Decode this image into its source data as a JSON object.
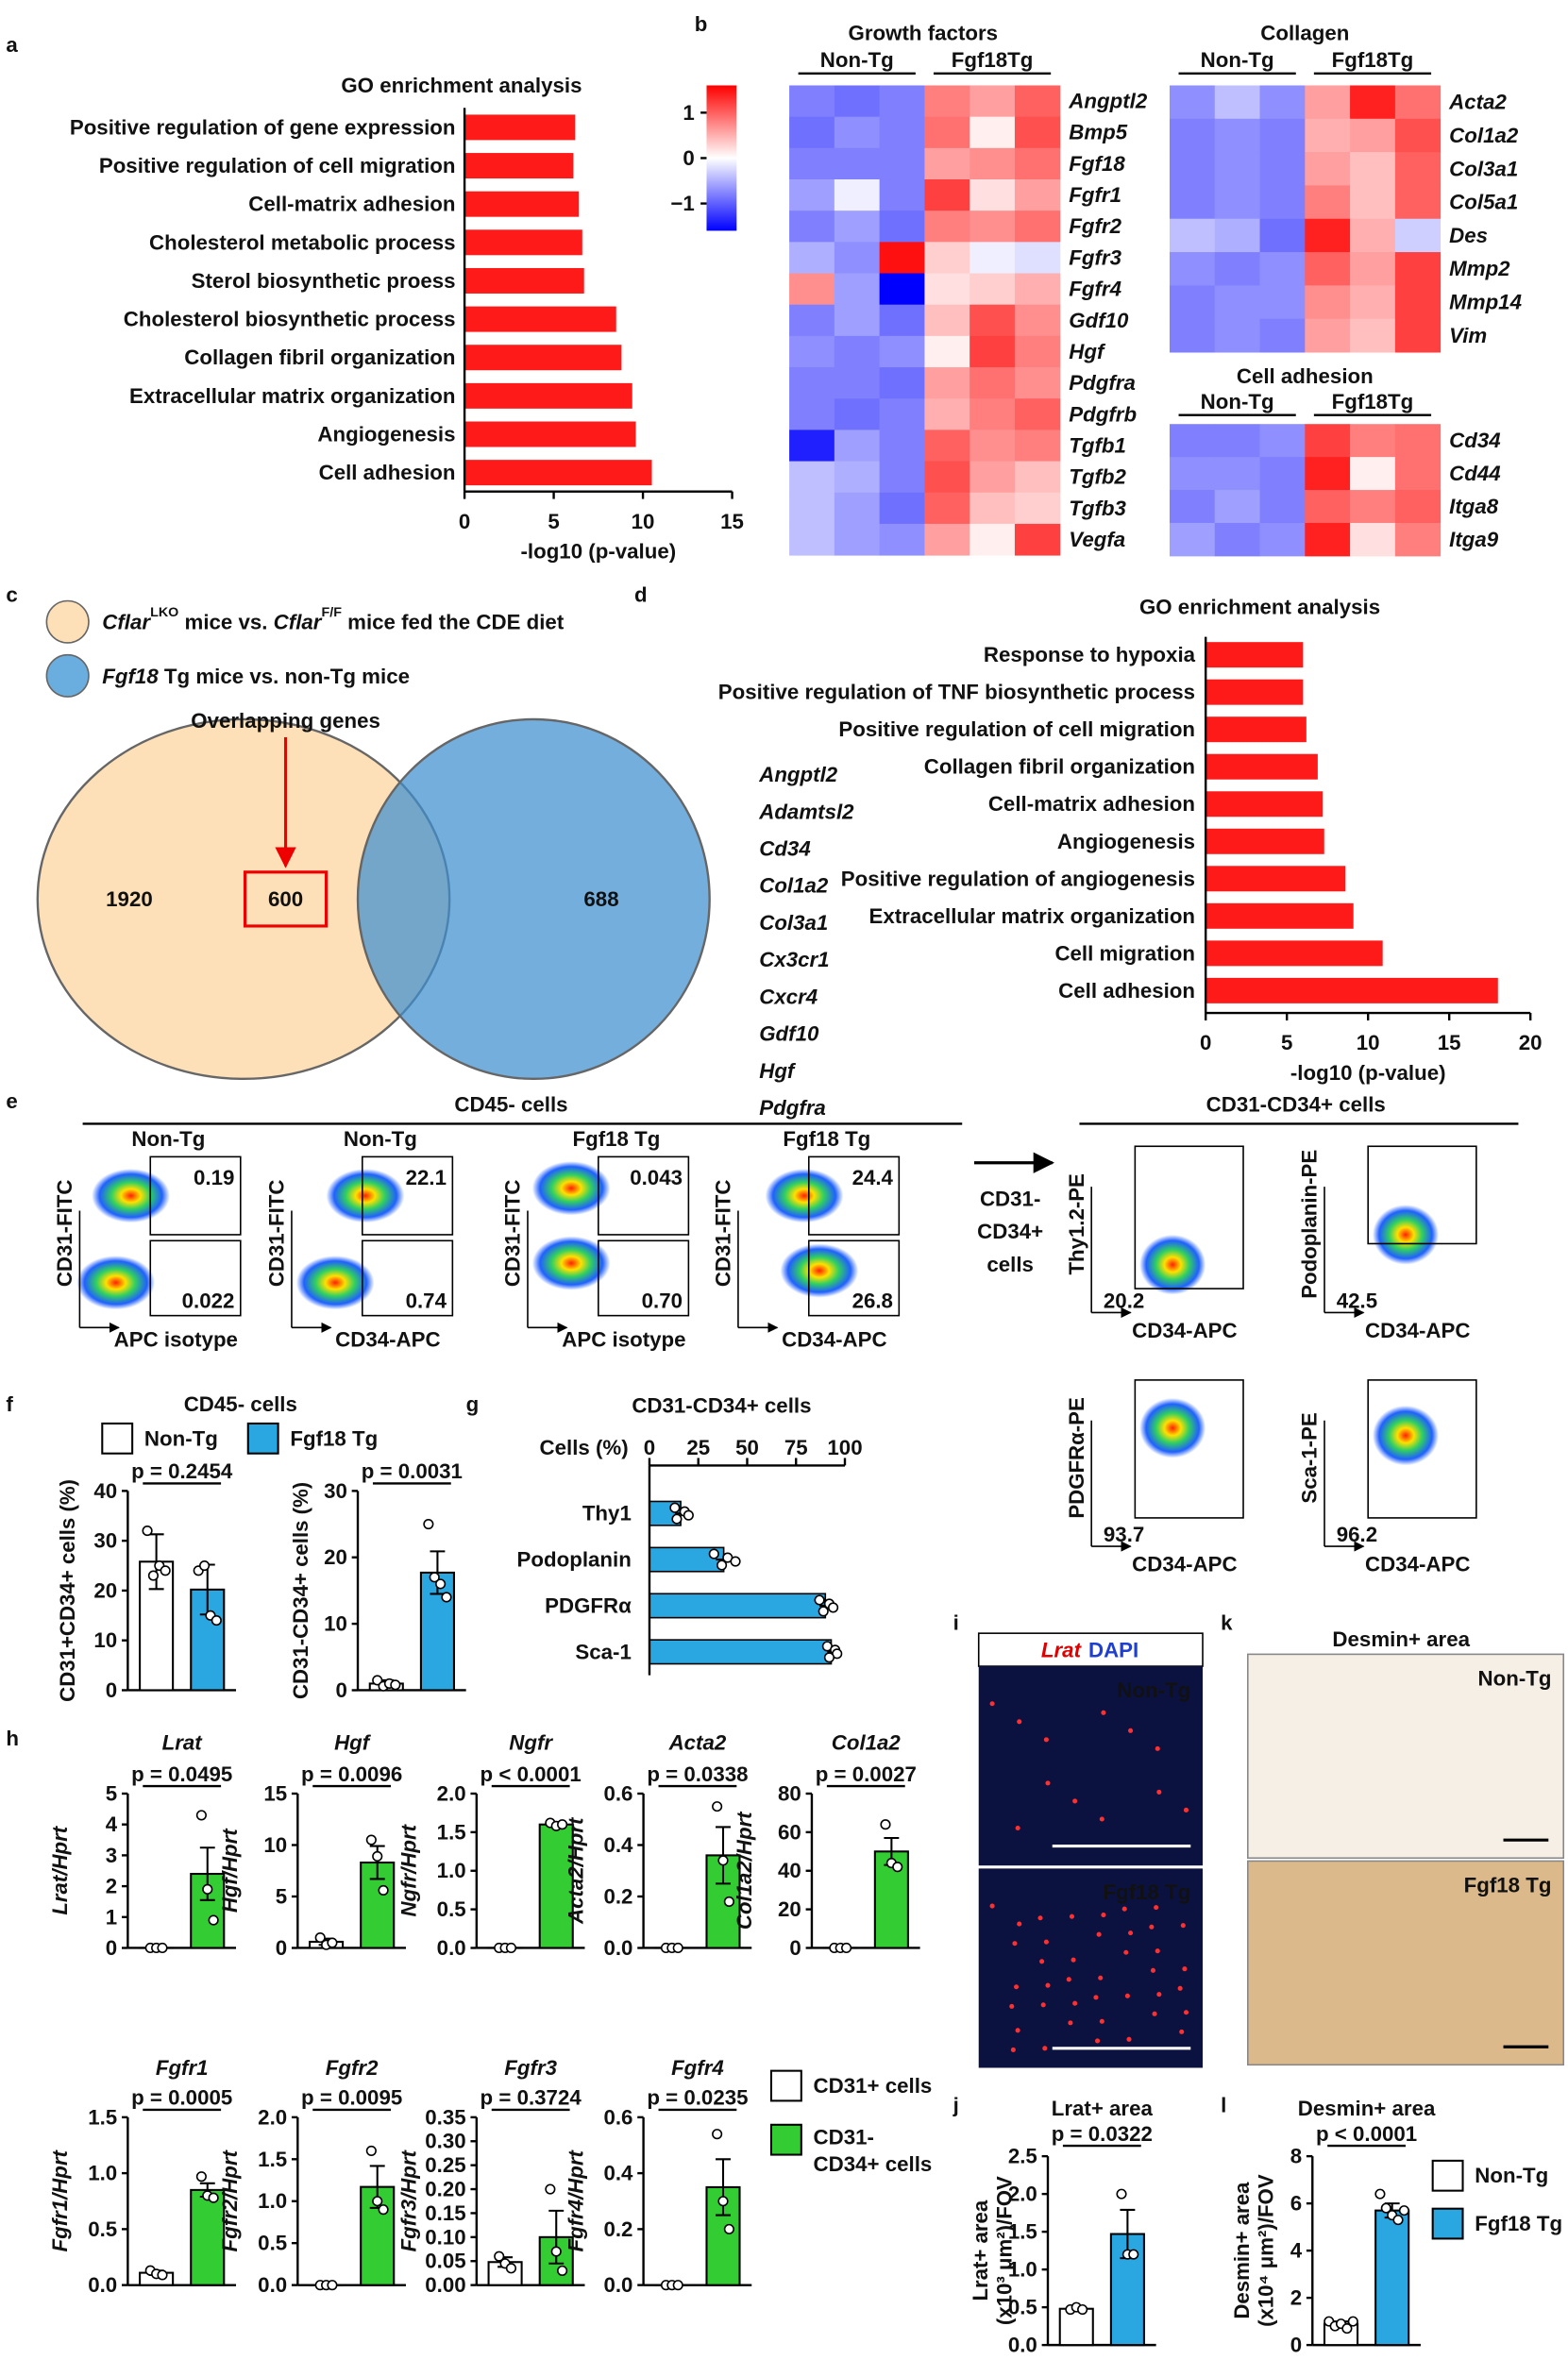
{
  "panel_labels": [
    "a",
    "b",
    "c",
    "d",
    "e",
    "f",
    "g",
    "h",
    "i",
    "j",
    "k",
    "l"
  ],
  "chart_data": [
    {
      "type": "bar",
      "orientation": "horizontal",
      "title": "GO enrichment analysis",
      "categories": [
        "Positive regulation of gene expression",
        "Positive regulation of cell migration",
        "Cell-matrix adhesion",
        "Cholesterol metabolic process",
        "Sterol biosynthetic proess",
        "Cholesterol biosynthetic process",
        "Collagen fibril organization",
        "Extracellular matrix organization",
        "Angiogenesis",
        "Cell adhesion"
      ],
      "values": [
        6.2,
        6.1,
        6.4,
        6.6,
        6.7,
        8.5,
        8.8,
        9.4,
        9.6,
        10.5
      ],
      "color": "#ff1a1a",
      "xlim": [
        0,
        15
      ],
      "xticks": [
        0,
        5,
        10,
        15
      ],
      "xlabel": "-log10 (p-value)"
    },
    {
      "type": "heatmap",
      "title": "Growth factors",
      "groups": [
        "Non-Tg",
        "Fgf18Tg"
      ],
      "rows": [
        "Angptl2",
        "Bmp5",
        "Fgf18",
        "Fgfr1",
        "Fgfr2",
        "Fgfr3",
        "Fgfr4",
        "Gdf10",
        "Hgf",
        "Pdgfra",
        "Pdgfrb",
        "Tgfb1",
        "Tgfb2",
        "Tgfb3",
        "Vegfa"
      ],
      "values": [
        [
          -0.8,
          -0.9,
          -0.8,
          0.8,
          0.6,
          1.0
        ],
        [
          -0.9,
          -0.7,
          -0.8,
          0.9,
          0.1,
          1.1
        ],
        [
          -0.8,
          -0.8,
          -0.8,
          0.6,
          0.7,
          0.9
        ],
        [
          -0.6,
          -0.1,
          -0.8,
          1.2,
          0.2,
          0.6
        ],
        [
          -0.8,
          -0.6,
          -0.9,
          0.8,
          0.7,
          0.9
        ],
        [
          -0.5,
          -0.7,
          1.5,
          0.3,
          -0.1,
          -0.2
        ],
        [
          0.7,
          -0.6,
          -1.6,
          0.2,
          0.3,
          0.5
        ],
        [
          -0.8,
          -0.6,
          -0.9,
          0.4,
          1.1,
          0.7
        ],
        [
          -0.7,
          -0.8,
          -0.7,
          0.1,
          1.2,
          0.8
        ],
        [
          -0.8,
          -0.8,
          -0.9,
          0.6,
          0.9,
          0.7
        ],
        [
          -0.8,
          -0.9,
          -0.8,
          0.5,
          0.8,
          1.0
        ],
        [
          -1.4,
          -0.6,
          -0.8,
          1.0,
          0.7,
          0.8
        ],
        [
          -0.4,
          -0.5,
          -0.8,
          1.1,
          0.6,
          0.4
        ],
        [
          -0.4,
          -0.6,
          -0.9,
          1.0,
          0.4,
          0.3
        ],
        [
          -0.4,
          -0.6,
          -0.7,
          0.6,
          0.1,
          1.2
        ]
      ],
      "zlim": [
        -1.6,
        1.6
      ],
      "zticks": [
        1,
        0,
        {
          "value": -1,
          "label": "−1"
        }
      ]
    },
    {
      "type": "heatmap",
      "title": "Collagen",
      "groups": [
        "Non-Tg",
        "Fgf18Tg"
      ],
      "rows": [
        "Acta2",
        "Col1a2",
        "Col3a1",
        "Col5a1",
        "Des",
        "Mmp2",
        "Mmp14",
        "Vim"
      ],
      "values": [
        [
          -0.7,
          -0.4,
          -0.7,
          0.6,
          1.4,
          0.9
        ],
        [
          -0.8,
          -0.7,
          -0.8,
          0.5,
          0.6,
          1.1
        ],
        [
          -0.8,
          -0.7,
          -0.8,
          0.6,
          0.4,
          1.0
        ],
        [
          -0.8,
          -0.7,
          -0.8,
          0.8,
          0.4,
          1.0
        ],
        [
          -0.4,
          -0.5,
          -0.9,
          1.4,
          0.5,
          -0.3
        ],
        [
          -0.7,
          -0.8,
          -0.7,
          1.0,
          0.6,
          1.2
        ],
        [
          -0.8,
          -0.7,
          -0.7,
          0.7,
          0.5,
          1.2
        ],
        [
          -0.8,
          -0.7,
          -0.8,
          0.6,
          0.4,
          1.2
        ]
      ]
    },
    {
      "type": "heatmap",
      "title": "Cell adhesion",
      "groups": [
        "Non-Tg",
        "Fgf18Tg"
      ],
      "rows": [
        "Cd34",
        "Cd44",
        "Itga8",
        "Itga9"
      ],
      "values": [
        [
          -0.8,
          -0.8,
          -0.7,
          1.2,
          0.8,
          0.9
        ],
        [
          -0.7,
          -0.7,
          -0.8,
          1.4,
          0.1,
          0.9
        ],
        [
          -0.8,
          -0.6,
          -0.8,
          1.0,
          0.8,
          1.0
        ],
        [
          -0.6,
          -0.8,
          -0.7,
          1.4,
          0.2,
          0.8
        ]
      ]
    },
    {
      "type": "bar",
      "orientation": "horizontal",
      "title": "GO enrichment analysis",
      "categories": [
        "Response to hypoxia",
        "Positive regulation of TNF biosynthetic process",
        "Positive regulation of cell migration",
        "Collagen fibril organization",
        "Cell-matrix adhesion",
        "Angiogenesis",
        "Positive regulation of angiogenesis",
        "Extracellular matrix organization",
        "Cell migration",
        "Cell adhesion"
      ],
      "values": [
        6.0,
        6.0,
        6.2,
        6.9,
        7.2,
        7.3,
        8.6,
        9.1,
        10.9,
        18.0
      ],
      "color": "#ff1a1a",
      "xlim": [
        0,
        20
      ],
      "xticks": [
        0,
        5,
        10,
        15,
        20
      ],
      "xlabel": "-log10 (p-value)"
    },
    {
      "type": "bar",
      "title": "CD45- cells",
      "legend": [
        "Non-Tg",
        "Fgf18 Tg"
      ],
      "ylabel": "CD31+CD34+ cells (%)",
      "ylim": [
        0,
        40
      ],
      "yticks": [
        0,
        10,
        20,
        30,
        40
      ],
      "values": [
        25.8,
        20.2
      ],
      "errors": [
        5.5,
        5.0
      ],
      "points": [
        [
          32,
          23,
          25,
          24
        ],
        [
          24,
          25,
          15,
          14
        ]
      ],
      "colors": [
        "#ffffff",
        "#2aa6e0"
      ],
      "annotation": "p = 0.2454"
    },
    {
      "type": "bar",
      "ylabel": "CD31-CD34+ cells (%)",
      "ylim": [
        0,
        30
      ],
      "yticks": [
        0,
        10,
        20,
        30
      ],
      "values": [
        1.0,
        17.7
      ],
      "errors": [
        0.5,
        3.2
      ],
      "points": [
        [
          1.5,
          0.6,
          1.0,
          0.8
        ],
        [
          25,
          17,
          16,
          14
        ]
      ],
      "colors": [
        "#ffffff",
        "#2aa6e0"
      ],
      "annotation": "p = 0.0031"
    },
    {
      "type": "bar",
      "orientation": "horizontal",
      "title": "CD31-CD34+ cells",
      "categories": [
        "Thy1",
        "Podoplanin",
        "PDGFRα",
        "Sca-1"
      ],
      "values": [
        16,
        38,
        90,
        93
      ],
      "errors": [
        3,
        4,
        3,
        2
      ],
      "points": [
        [
          13,
          18,
          20,
          14
        ],
        [
          33,
          40,
          44,
          37
        ],
        [
          87,
          92,
          94,
          89
        ],
        [
          91,
          95,
          96,
          92
        ]
      ],
      "color": "#2aa6e0",
      "xlim": [
        0,
        100
      ],
      "xticks": [
        0,
        25,
        50,
        75,
        100
      ],
      "xlabel": "Cells (%)"
    },
    {
      "type": "bar",
      "title": "Lrat",
      "ylabel": "Lrat/Hprt",
      "ylim": [
        0,
        5
      ],
      "yticks": [
        0,
        1,
        2,
        3,
        4,
        5
      ],
      "values": [
        0.0,
        2.4
      ],
      "errors": [
        0,
        0.85
      ],
      "points": [
        [
          0,
          0,
          0
        ],
        [
          4.3,
          1.9,
          0.9
        ]
      ],
      "colors": [
        "#ffffff",
        "#33cc33"
      ],
      "annotation": "p = 0.0495"
    },
    {
      "type": "bar",
      "title": "Hgf",
      "ylabel": "Hgf/Hprt",
      "ylim": [
        0,
        15
      ],
      "yticks": [
        0,
        5,
        10,
        15
      ],
      "values": [
        0.6,
        8.3
      ],
      "errors": [
        0.3,
        1.6
      ],
      "points": [
        [
          1.0,
          0.3,
          0.5
        ],
        [
          10.5,
          8.9,
          5.6
        ]
      ],
      "colors": [
        "#ffffff",
        "#33cc33"
      ],
      "annotation": "p = 0.0096"
    },
    {
      "type": "bar",
      "title": "Ngfr",
      "ylabel": "Ngfr/Hprt",
      "ylim": [
        0,
        2
      ],
      "yticks": [
        {
          "value": 0,
          "label": "0.0"
        },
        0.5,
        {
          "value": 1,
          "label": "1.0"
        },
        1.5,
        {
          "value": 2,
          "label": "2.0"
        }
      ],
      "values": [
        0.0,
        1.6
      ],
      "errors": [
        0,
        0.03
      ],
      "points": [
        [
          0,
          0,
          0
        ],
        [
          1.62,
          1.58,
          1.6
        ]
      ],
      "colors": [
        "#ffffff",
        "#33cc33"
      ],
      "annotation": "p < 0.0001"
    },
    {
      "type": "bar",
      "title": "Acta2",
      "ylabel": "Acta2/Hprt",
      "ylim": [
        0,
        0.6
      ],
      "yticks": [
        {
          "value": 0,
          "label": "0.0"
        },
        0.2,
        0.4,
        0.6
      ],
      "values": [
        0.0,
        0.36
      ],
      "errors": [
        0,
        0.11
      ],
      "points": [
        [
          0,
          0,
          0
        ],
        [
          0.55,
          0.34,
          0.18
        ]
      ],
      "colors": [
        "#ffffff",
        "#33cc33"
      ],
      "annotation": "p = 0.0338"
    },
    {
      "type": "bar",
      "title": "Col1a2",
      "ylabel": "Col1a2/Hprt",
      "ylim": [
        0,
        80
      ],
      "yticks": [
        0,
        20,
        40,
        60,
        80
      ],
      "values": [
        0,
        50
      ],
      "errors": [
        0,
        7
      ],
      "points": [
        [
          0,
          0,
          0
        ],
        [
          64,
          44,
          42
        ]
      ],
      "colors": [
        "#ffffff",
        "#33cc33"
      ],
      "annotation": "p = 0.0027"
    },
    {
      "type": "bar",
      "title": "Fgfr1",
      "ylabel": "Fgfr1/Hprt",
      "ylim": [
        0,
        1.5
      ],
      "yticks": [
        {
          "value": 0,
          "label": "0.0"
        },
        0.5,
        {
          "value": 1,
          "label": "1.0"
        },
        1.5
      ],
      "values": [
        0.11,
        0.85
      ],
      "errors": [
        0.02,
        0.06
      ],
      "points": [
        [
          0.13,
          0.1,
          0.09
        ],
        [
          0.97,
          0.8,
          0.78
        ]
      ],
      "colors": [
        "#ffffff",
        "#33cc33"
      ],
      "annotation": "p = 0.0005"
    },
    {
      "type": "bar",
      "title": "Fgfr2",
      "ylabel": "Fgfr2/Hprt",
      "ylim": [
        0,
        2
      ],
      "yticks": [
        {
          "value": 0,
          "label": "0.0"
        },
        0.5,
        {
          "value": 1,
          "label": "1.0"
        },
        1.5,
        {
          "value": 2,
          "label": "2.0"
        }
      ],
      "values": [
        0.0,
        1.17
      ],
      "errors": [
        0,
        0.25
      ],
      "points": [
        [
          0,
          0,
          0
        ],
        [
          1.6,
          1.0,
          0.9
        ]
      ],
      "colors": [
        "#ffffff",
        "#33cc33"
      ],
      "annotation": "p = 0.0095"
    },
    {
      "type": "bar",
      "title": "Fgfr3",
      "ylabel": "Fgfr3/Hprt",
      "ylim": [
        0,
        0.35
      ],
      "yticks": [
        {
          "value": 0,
          "label": "0.00"
        },
        0.05,
        {
          "value": 0.1,
          "label": "0.10"
        },
        0.15,
        {
          "value": 0.2,
          "label": "0.20"
        },
        0.25,
        {
          "value": 0.3,
          "label": "0.30"
        },
        0.35
      ],
      "values": [
        0.048,
        0.1
      ],
      "errors": [
        0.01,
        0.055
      ],
      "points": [
        [
          0.06,
          0.045,
          0.035
        ],
        [
          0.2,
          0.07,
          0.03
        ]
      ],
      "colors": [
        "#ffffff",
        "#33cc33"
      ],
      "annotation": "p = 0.3724"
    },
    {
      "type": "bar",
      "title": "Fgfr4",
      "ylabel": "Fgfr4/Hprt",
      "legend": [
        "CD31+ cells",
        "CD31- CD34+ cells"
      ],
      "ylim": [
        0,
        0.6
      ],
      "yticks": [
        {
          "value": 0,
          "label": "0.0"
        },
        0.2,
        0.4,
        0.6
      ],
      "values": [
        0.0,
        0.35
      ],
      "errors": [
        0,
        0.1
      ],
      "points": [
        [
          0,
          0,
          0
        ],
        [
          0.54,
          0.3,
          0.2
        ]
      ],
      "colors": [
        "#ffffff",
        "#33cc33"
      ],
      "annotation": "p = 0.0235"
    },
    {
      "type": "bar",
      "title": "Lrat+ area",
      "ylabel": [
        "Lrat+ area",
        "(x10³ μm²)/FOV"
      ],
      "ylim": [
        0,
        2.5
      ],
      "yticks": [
        {
          "value": 0,
          "label": "0.0"
        },
        0.5,
        {
          "value": 1,
          "label": "1.0"
        },
        1.5,
        {
          "value": 2,
          "label": "2.0"
        },
        2.5
      ],
      "values": [
        0.48,
        1.47
      ],
      "errors": [
        0.02,
        0.32
      ],
      "points": [
        [
          0.47,
          0.5,
          0.47
        ],
        [
          2.0,
          1.2,
          1.2
        ]
      ],
      "colors": [
        "#ffffff",
        "#2aa6e0"
      ],
      "annotation": "p = 0.0322"
    },
    {
      "type": "bar",
      "title": "Desmin+ area",
      "ylabel": [
        "Desmin+ area",
        "(x10⁴ μm²)/FOV"
      ],
      "legend": [
        "Non-Tg",
        "Fgf18 Tg"
      ],
      "ylim": [
        0,
        8
      ],
      "yticks": [
        0,
        2,
        4,
        6,
        8
      ],
      "values": [
        0.9,
        5.7
      ],
      "errors": [
        0.1,
        0.3
      ],
      "points": [
        [
          1.0,
          0.8,
          0.9,
          0.7,
          1.0
        ],
        [
          6.4,
          5.8,
          5.5,
          5.3,
          5.7
        ]
      ],
      "colors": [
        "#ffffff",
        "#2aa6e0"
      ],
      "annotation": "p < 0.0001"
    }
  ],
  "venn": {
    "legend": [
      [
        "Cflar",
        "LKO",
        " mice vs. ",
        "Cflar",
        "F/F",
        " mice fed the CDE diet"
      ],
      [
        "Fgf18",
        " Tg mice vs. non-Tg mice"
      ]
    ],
    "callout": "Overlapping genes",
    "counts": [
      "1920",
      "600",
      "688"
    ],
    "genes": [
      "Angptl2",
      "Adamtsl2",
      "Cd34",
      "Col1a2",
      "Col3a1",
      "Cx3cr1",
      "Cxcr4",
      "Gdf10",
      "Hgf",
      "Pdgfra"
    ]
  },
  "flow": {
    "left_title": "CD45- cells",
    "left_plots": [
      {
        "group": "Non-Tg",
        "y": "CD31-FITC",
        "x": "APC isotype",
        "upper": "0.19",
        "lower": "0.022"
      },
      {
        "group": "Non-Tg",
        "y": "CD31-FITC",
        "x": "CD34-APC",
        "upper": "22.1",
        "lower": "0.74"
      },
      {
        "group": "Fgf18 Tg",
        "y": "CD31-FITC",
        "x": "APC isotype",
        "upper": "0.043",
        "lower": "0.70"
      },
      {
        "group": "Fgf18 Tg",
        "y": "CD31-FITC",
        "x": "CD34-APC",
        "upper": "24.4",
        "lower": "26.8"
      }
    ],
    "arrow_label": [
      "CD31-",
      "CD34+",
      "cells"
    ],
    "right_title": "CD31-CD34+ cells",
    "right_plots": [
      {
        "y": "Thy1.2-PE",
        "x": "CD34-APC",
        "gate": "20.2"
      },
      {
        "y": "Podoplanin-PE",
        "x": "CD34-APC",
        "gate": "42.5"
      },
      {
        "y": "PDGFRα-PE",
        "x": "CD34-APC",
        "gate": "93.7"
      },
      {
        "y": "Sca-1-PE",
        "x": "CD34-APC",
        "gate": "96.2"
      }
    ]
  },
  "images": {
    "i": {
      "header": [
        "Lrat",
        "DAPI"
      ],
      "labels": [
        "Non-Tg",
        "Fgf18 Tg"
      ]
    },
    "k": {
      "title": "Desmin+ area",
      "labels": [
        "Non-Tg",
        "Fgf18 Tg"
      ]
    }
  }
}
